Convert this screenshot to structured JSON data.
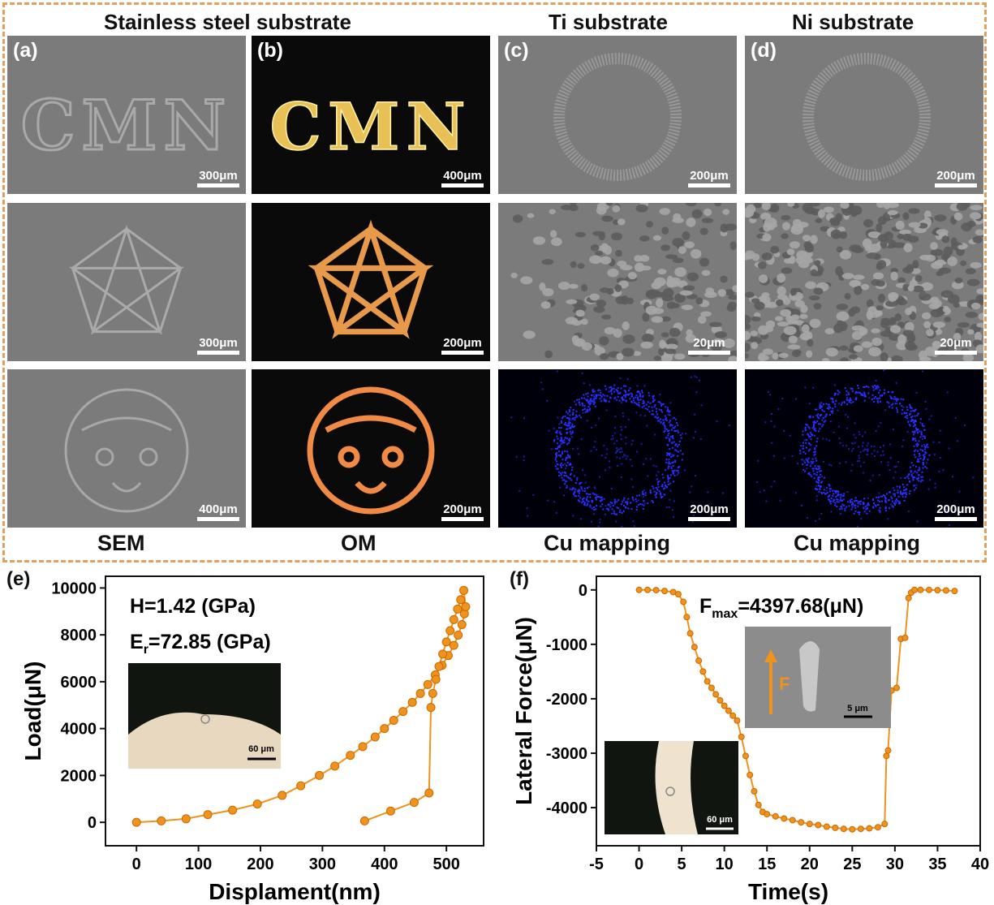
{
  "top_figure": {
    "column_headers": [
      "Stainless steel substrate",
      "Ti  substrate",
      "Ni  substrate"
    ],
    "row_footers": [
      "SEM",
      "OM",
      "Cu mapping",
      "Cu mapping"
    ],
    "panel_labels": [
      "(a)",
      "(b)",
      "(c)",
      "(d)"
    ],
    "tiles": [
      {
        "kind": "sem",
        "text": "CMN",
        "scale": "300μm"
      },
      {
        "kind": "om",
        "text": "CMN",
        "scale": "400μm"
      },
      {
        "kind": "sem",
        "text": "",
        "scale": "200μm"
      },
      {
        "kind": "sem",
        "text": "",
        "scale": "200μm"
      },
      {
        "kind": "sem",
        "text": "",
        "scale": "300μm"
      },
      {
        "kind": "om",
        "text": "",
        "scale": "200μm"
      },
      {
        "kind": "sem",
        "text": "",
        "scale": "20μm"
      },
      {
        "kind": "sem",
        "text": "",
        "scale": "20μm"
      },
      {
        "kind": "sem",
        "text": "",
        "scale": "400μm"
      },
      {
        "kind": "om",
        "text": "",
        "scale": "200μm"
      },
      {
        "kind": "map",
        "text": "",
        "scale": "200μm"
      },
      {
        "kind": "map",
        "text": "",
        "scale": "200μm"
      }
    ]
  },
  "chart_data": [
    {
      "type": "line",
      "panel_label": "(e)",
      "xlabel": "Displament(nm)",
      "ylabel": "Load(μN)",
      "xlim": [
        -50,
        560
      ],
      "ylim": [
        -1000,
        10500
      ],
      "xticks": [
        0,
        100,
        200,
        300,
        400,
        500
      ],
      "yticks": [
        0,
        2000,
        4000,
        6000,
        8000,
        10000
      ],
      "annotations": [
        "H=1.42 (GPa)",
        "E",
        "r",
        "=72.85 (GPa)"
      ],
      "inset_scale": "60 μm",
      "series": [
        {
          "x": [
            0,
            40,
            80,
            115,
            155,
            195,
            235,
            265,
            295,
            320,
            345,
            365,
            385,
            400,
            415,
            430,
            445,
            458,
            470,
            482,
            493,
            503,
            512,
            519,
            525,
            529,
            531,
            528,
            523,
            518,
            512,
            506,
            500,
            494,
            488,
            483,
            478,
            475,
            472,
            448,
            410,
            368
          ],
          "y": [
            0,
            60,
            150,
            330,
            520,
            780,
            1150,
            1560,
            2000,
            2400,
            2860,
            3230,
            3640,
            4000,
            4350,
            4730,
            5120,
            5500,
            5880,
            6290,
            6700,
            7120,
            7550,
            7990,
            8440,
            8900,
            9200,
            9900,
            9500,
            9100,
            8650,
            8180,
            7700,
            7180,
            6650,
            6100,
            5500,
            4900,
            1250,
            850,
            480,
            60
          ]
        }
      ]
    },
    {
      "type": "line",
      "panel_label": "(f)",
      "xlabel": "Time(s)",
      "ylabel": "Lateral Force(μN)",
      "xlim": [
        -5,
        40
      ],
      "ylim": [
        -4700,
        250
      ],
      "xticks": [
        -5,
        0,
        5,
        10,
        15,
        20,
        25,
        30,
        35,
        40
      ],
      "yticks": [
        0,
        -1000,
        -2000,
        -3000,
        -4000
      ],
      "annotations": [
        "F",
        "max",
        "=4397.68(μN)"
      ],
      "inset_scale_top": "5 μm",
      "inset_arrow_label": "F",
      "inset_scale_bottom": "60 μm",
      "series": [
        {
          "x": [
            0,
            1,
            2,
            3,
            4,
            4.6,
            5.2,
            5.6,
            6,
            6.5,
            7,
            7.5,
            8,
            8.5,
            9,
            9.5,
            10,
            10.5,
            11,
            11.5,
            12,
            12.5,
            13,
            13.5,
            14,
            14.5,
            15,
            16,
            17,
            18,
            19,
            20,
            21,
            22,
            23,
            24,
            25,
            26,
            27,
            28,
            28.8,
            29.0,
            29.2,
            29.6,
            30.2,
            30.7,
            31.2,
            31.6,
            31.9,
            32.3,
            33,
            34,
            35,
            36,
            37
          ],
          "y": [
            0,
            0,
            -5,
            -20,
            -40,
            -80,
            -220,
            -500,
            -800,
            -1050,
            -1300,
            -1500,
            -1680,
            -1800,
            -1920,
            -2030,
            -2130,
            -2220,
            -2310,
            -2400,
            -2700,
            -3050,
            -3400,
            -3700,
            -3950,
            -4080,
            -4120,
            -4160,
            -4200,
            -4230,
            -4270,
            -4300,
            -4320,
            -4350,
            -4370,
            -4390,
            -4398,
            -4390,
            -4380,
            -4360,
            -4300,
            -3050,
            -2950,
            -1850,
            -1800,
            -900,
            -880,
            -150,
            -50,
            0,
            0,
            0,
            -5,
            -10,
            -20
          ]
        }
      ]
    }
  ]
}
